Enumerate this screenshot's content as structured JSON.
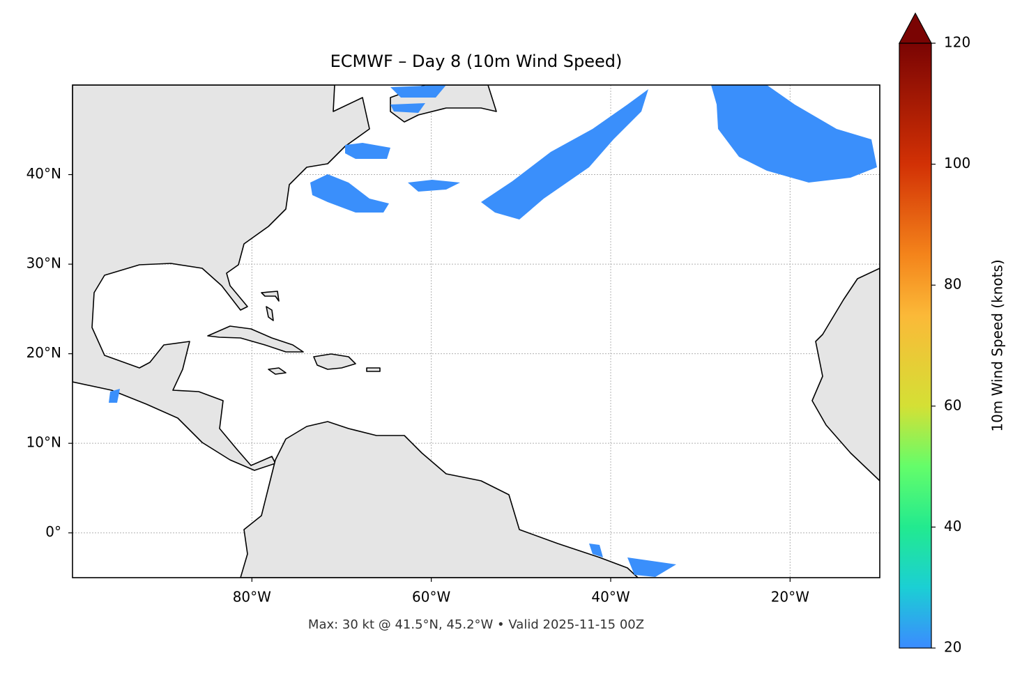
{
  "chart_data": {
    "type": "map",
    "title": "ECMWF – Day 8 (10m Wind Speed)",
    "footer": "Max: 30 kt @ 41.5°N, 45.2°W • Valid 2025-11-15 00Z",
    "xlim": [
      -100,
      -10
    ],
    "ylim": [
      -5,
      50
    ],
    "xticks": [
      {
        "value": -80,
        "label": "80°W"
      },
      {
        "value": -60,
        "label": "60°W"
      },
      {
        "value": -40,
        "label": "40°W"
      },
      {
        "value": -20,
        "label": "20°W"
      }
    ],
    "yticks": [
      {
        "value": 0,
        "label": "0°"
      },
      {
        "value": 10,
        "label": "10°N"
      },
      {
        "value": 20,
        "label": "20°N"
      },
      {
        "value": 30,
        "label": "30°N"
      },
      {
        "value": 40,
        "label": "40°N"
      }
    ],
    "grid": true,
    "colorbar": {
      "label": "10m Wind Speed (knots)",
      "lim": [
        20,
        120
      ],
      "ticks": [
        20,
        40,
        60,
        80,
        100,
        120
      ]
    }
  }
}
